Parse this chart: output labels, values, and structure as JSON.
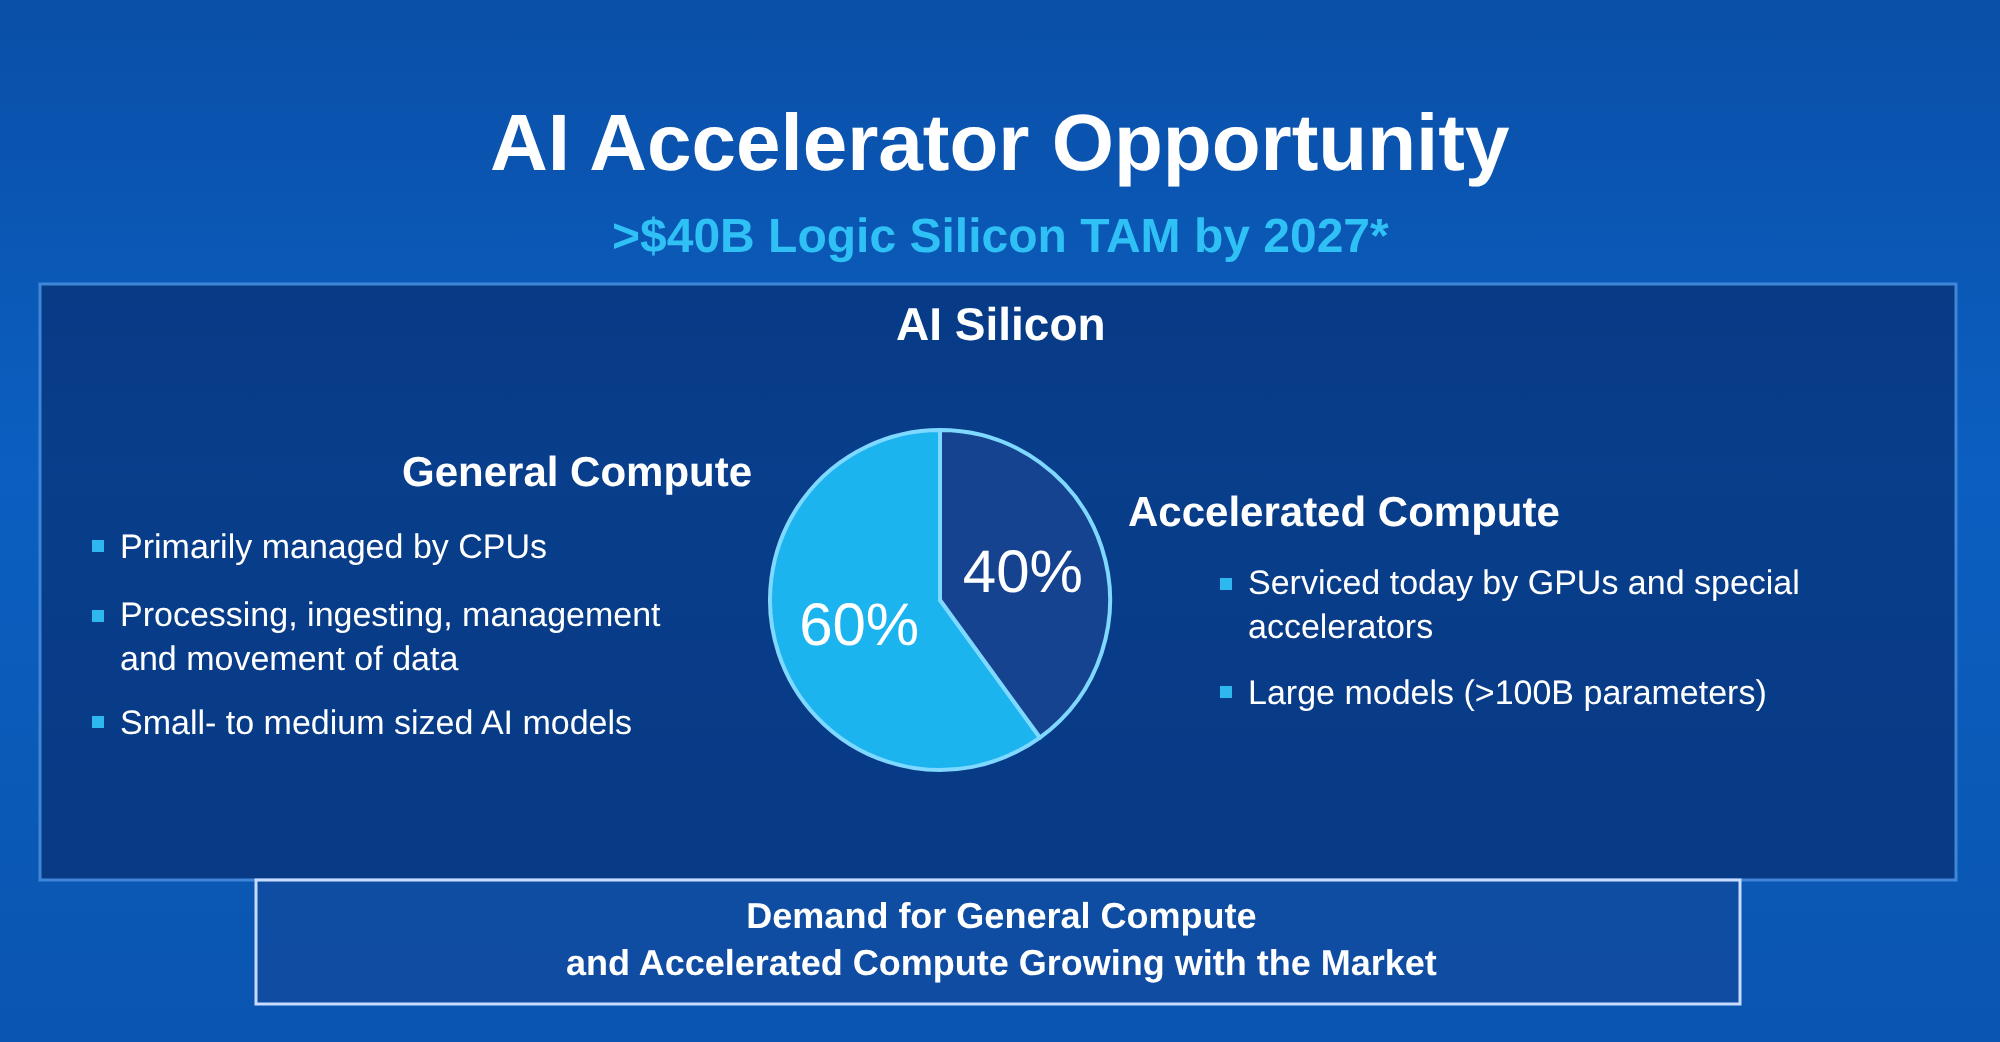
{
  "chart_data": {
    "type": "pie",
    "title": "AI Accelerator Opportunity",
    "subtitle": ">$40B Logic Silicon TAM by 2027*",
    "categories": [
      "General Compute",
      "Accelerated Compute"
    ],
    "values": [
      60,
      40
    ],
    "value_labels": [
      "60%",
      "40%"
    ],
    "colors": [
      "#1cb4ee",
      "#15438f"
    ],
    "legend": false,
    "annotations": [
      "AI Silicon",
      "Primarily managed by CPUs",
      "Processing, ingesting, management\nand movement of data",
      "Small- to medium sized AI models",
      "Serviced today by GPUs and special\naccelerators",
      "Large models (>100B parameters)",
      "Demand for General Compute\nand Accelerated Compute Growing with the Market"
    ]
  }
}
